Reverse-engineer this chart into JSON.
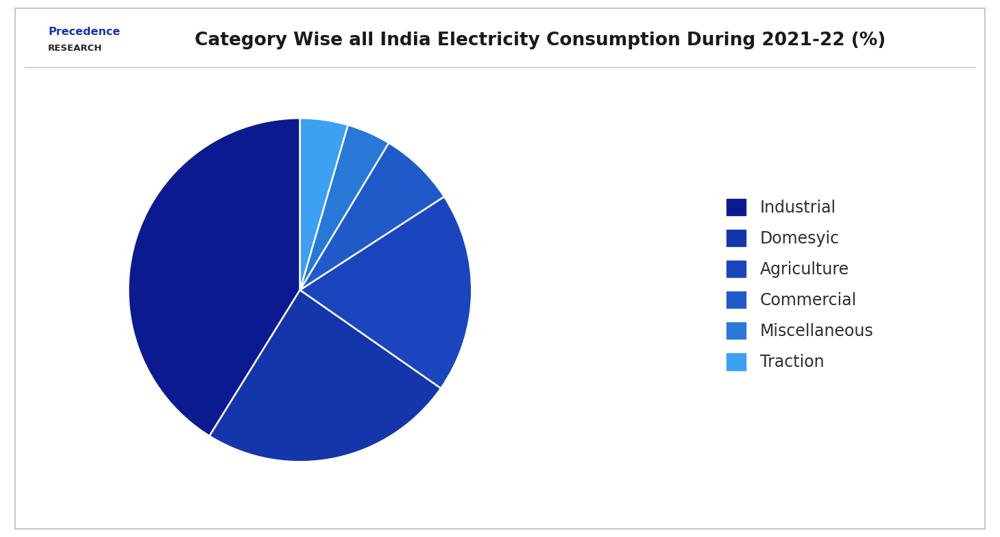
{
  "title": "Category Wise all India Electricity Consumption During 2021-22 (%)",
  "labels": [
    "Industrial",
    "Domesyic",
    "Agriculture",
    "Commercial",
    "Miscellaneous",
    "Traction"
  ],
  "values": [
    41.16,
    24.15,
    18.83,
    7.22,
    4.14,
    4.5
  ],
  "colors": [
    "#0c1a8f",
    "#1535aa",
    "#1a45bc",
    "#1f5ac8",
    "#2878d8",
    "#3da0f0"
  ],
  "background_color": "#ffffff",
  "title_fontsize": 19,
  "legend_fontsize": 17,
  "startangle": 90,
  "logo_line1": "Precedence",
  "logo_line2": "RESEARCH",
  "logo_color": "#1535aa",
  "logo_line2_color": "#222222",
  "title_color": "#1a1a1a",
  "separator_color": "#bbbbbb",
  "border_color": "#bbbbbb"
}
